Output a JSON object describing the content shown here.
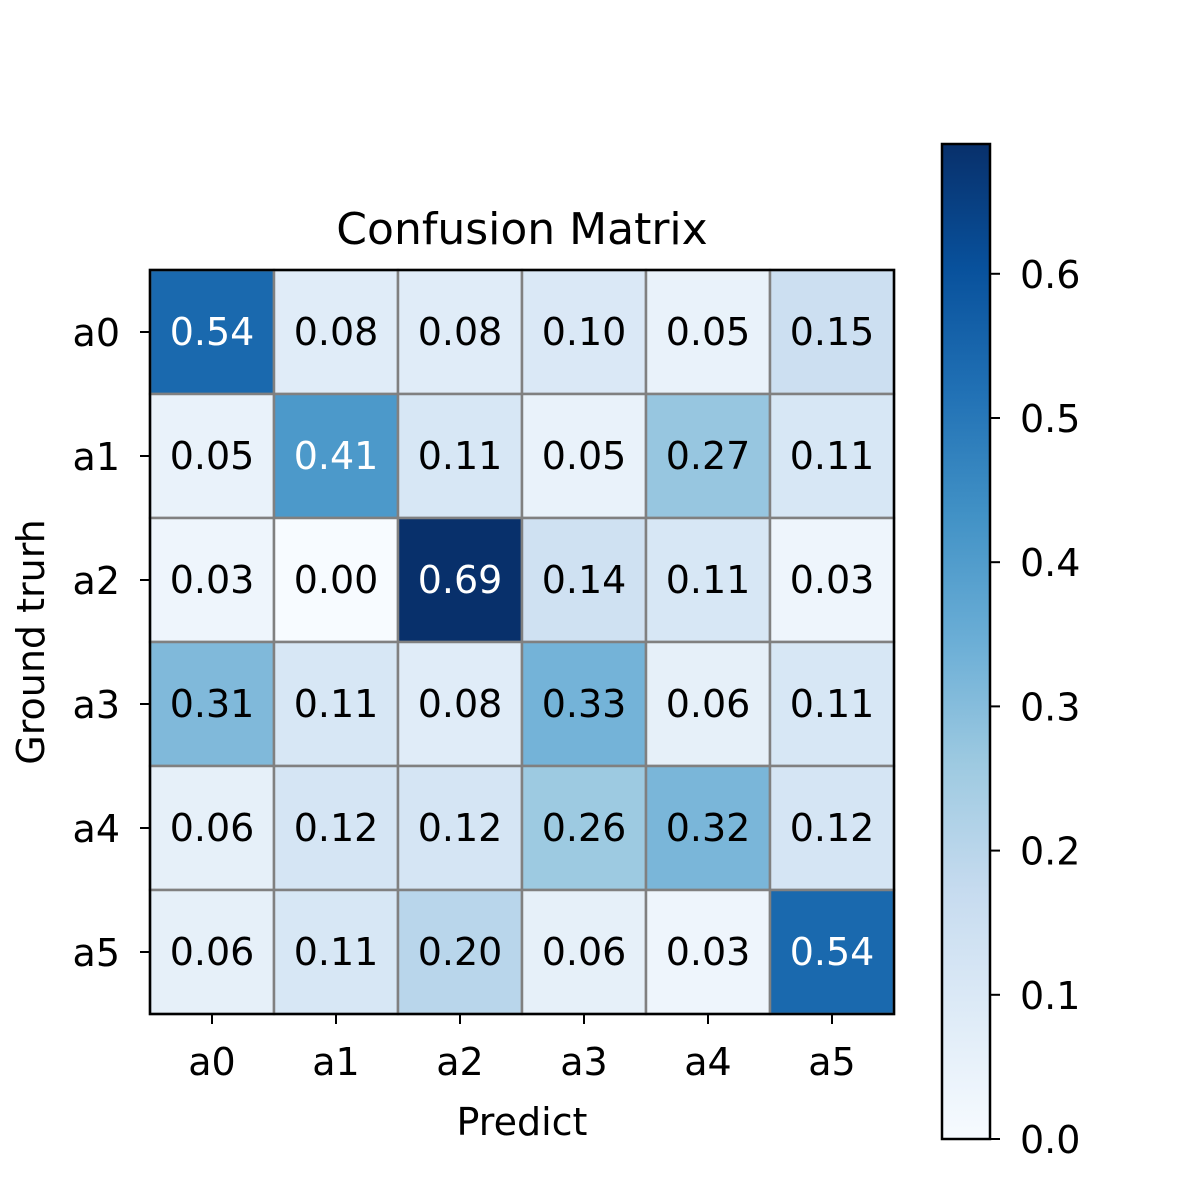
{
  "chart_data": {
    "type": "heatmap",
    "title": "Confusion Matrix",
    "xlabel": "Predict",
    "ylabel": "Ground trurh",
    "x_categories": [
      "a0",
      "a1",
      "a2",
      "a3",
      "a4",
      "a5"
    ],
    "y_categories": [
      "a0",
      "a1",
      "a2",
      "a3",
      "a4",
      "a5"
    ],
    "values": [
      [
        0.54,
        0.08,
        0.08,
        0.1,
        0.05,
        0.15
      ],
      [
        0.05,
        0.41,
        0.11,
        0.05,
        0.27,
        0.11
      ],
      [
        0.03,
        0.0,
        0.69,
        0.14,
        0.11,
        0.03
      ],
      [
        0.31,
        0.11,
        0.08,
        0.33,
        0.06,
        0.11
      ],
      [
        0.06,
        0.12,
        0.12,
        0.26,
        0.32,
        0.12
      ],
      [
        0.06,
        0.11,
        0.2,
        0.06,
        0.03,
        0.54
      ]
    ],
    "colormap": "Blues",
    "colorbar": {
      "range": [
        0.0,
        0.69
      ],
      "ticks": [
        0.0,
        0.1,
        0.2,
        0.3,
        0.4,
        0.5,
        0.6
      ],
      "tick_labels": [
        "0.0",
        "0.1",
        "0.2",
        "0.3",
        "0.4",
        "0.5",
        "0.6"
      ],
      "placement": "right"
    },
    "colors": {
      "cell_border": "#808080",
      "frame": "#000000",
      "text_dark": "#000000",
      "text_light": "#ffffff"
    }
  }
}
